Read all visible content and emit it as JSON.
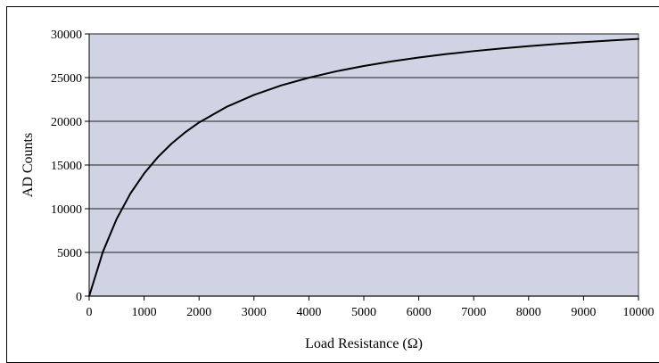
{
  "chart_data": {
    "type": "line",
    "title": "",
    "xlabel": "Load Resistance (Ω)",
    "ylabel": "AD Counts",
    "xlim": [
      0,
      10000
    ],
    "ylim": [
      0,
      30000
    ],
    "x_ticks": [
      0,
      1000,
      2000,
      3000,
      4000,
      5000,
      6000,
      7000,
      8000,
      9000,
      10000
    ],
    "y_ticks": [
      0,
      5000,
      10000,
      15000,
      20000,
      25000,
      30000
    ],
    "x_tick_labels": [
      "0",
      "1000",
      "2000",
      "3000",
      "4000",
      "5000",
      "6000",
      "7000",
      "8000",
      "9000",
      "10000"
    ],
    "y_tick_labels": [
      "0",
      "5000",
      "10000",
      "15000",
      "20000",
      "25000",
      "30000"
    ],
    "grid": "horizontal",
    "legend": "none",
    "colors": {
      "plot_background": "#d0d3e3",
      "grid_line": "#444444",
      "series_line": "#000000"
    },
    "series": [
      {
        "x": [
          0,
          250,
          500,
          750,
          1000,
          1250,
          1500,
          1750,
          2000,
          2500,
          3000,
          3500,
          4000,
          4500,
          5000,
          5500,
          6000,
          6500,
          7000,
          7500,
          8000,
          8500,
          9000,
          9500,
          10000
        ],
        "y": [
          0,
          5070,
          8830,
          11730,
          14030,
          15900,
          17450,
          18750,
          19860,
          21650,
          23020,
          24110,
          24990,
          25720,
          26330,
          26850,
          27300,
          27690,
          28030,
          28330,
          28600,
          28840,
          29050,
          29250,
          29420
        ]
      }
    ]
  }
}
